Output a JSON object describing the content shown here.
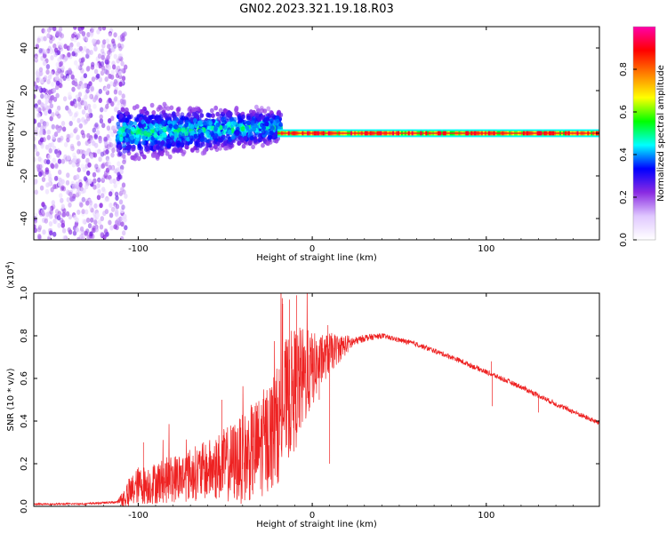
{
  "figure": {
    "title": "GN02.2023.321.19.18.R03"
  },
  "colors": {
    "colormap": [
      "#ffffff",
      "#e0c8ff",
      "#8a2be2",
      "#0000ff",
      "#00ffff",
      "#00ff00",
      "#ffff00",
      "#ff8000",
      "#ff0000",
      "#ff00aa"
    ],
    "snr_line": "#ee2222",
    "axes": "#000000"
  },
  "chart_data": [
    {
      "type": "heatmap",
      "name": "spectrogram",
      "xlabel": "Height of straight line (km)",
      "ylabel": "Frequency (Hz)",
      "xlim": [
        -160,
        165
      ],
      "ylim": [
        -50,
        50
      ],
      "xticks": [
        -100,
        0,
        100
      ],
      "yticks": [
        -40,
        -20,
        0,
        20,
        40
      ],
      "colorbar": {
        "label": "Normalized spectral amplitude",
        "range": [
          0.0,
          1.0
        ],
        "ticks": [
          "0.0",
          "0.2",
          "0.4",
          "0.6",
          "0.8"
        ]
      },
      "regions": [
        {
          "x": [
            -160,
            -107
          ],
          "freq_spread": [
            -50,
            50
          ],
          "amplitude": [
            0.05,
            0.25
          ],
          "description_values": "scattered"
        },
        {
          "x": [
            -112,
            -18
          ],
          "freq_spread_start": [
            -15,
            15
          ],
          "freq_spread_end": [
            -6,
            12
          ],
          "amplitude": [
            0.15,
            0.55
          ]
        },
        {
          "x": [
            -20,
            165
          ],
          "freq_center": 0,
          "freq_halfwidth": 1.5,
          "amplitude": [
            0.55,
            0.95
          ]
        }
      ]
    },
    {
      "type": "line",
      "name": "snr",
      "xlabel": "Height of straight line (km)",
      "ylabel": "SNR (10 * v/v)",
      "multiplier_label": "(x10",
      "multiplier_exp": "4",
      "multiplier_close": ")",
      "xlim": [
        -160,
        165
      ],
      "ylim": [
        0,
        1.0
      ],
      "xticks": [
        -100,
        0,
        100
      ],
      "yticks": [
        "0.0",
        "0.2",
        "0.4",
        "0.6",
        "0.8",
        "1.0"
      ],
      "ytick_values": [
        0.0,
        0.2,
        0.4,
        0.6,
        0.8,
        1.0
      ],
      "envelope": {
        "x": [
          -160,
          -130,
          -112,
          -105,
          -100,
          -95,
          -80,
          -60,
          -40,
          -30,
          -20,
          -15,
          -10,
          -5,
          0,
          5,
          10,
          20,
          30,
          40,
          60,
          80,
          100,
          120,
          140,
          165
        ],
        "y": [
          0.01,
          0.012,
          0.02,
          0.06,
          0.1,
          0.1,
          0.13,
          0.17,
          0.22,
          0.28,
          0.38,
          0.5,
          0.55,
          0.6,
          0.64,
          0.68,
          0.72,
          0.76,
          0.79,
          0.8,
          0.76,
          0.7,
          0.63,
          0.56,
          0.48,
          0.39
        ]
      },
      "noise": {
        "x": [
          -160,
          -112,
          -105,
          -60,
          -20,
          -10,
          5,
          25,
          40,
          165
        ],
        "amp": [
          0.004,
          0.005,
          0.08,
          0.14,
          0.28,
          0.3,
          0.12,
          0.02,
          0.012,
          0.012
        ]
      },
      "spikes": [
        {
          "x": -97,
          "y": 0.3
        },
        {
          "x": -52,
          "y": 0.5
        },
        {
          "x": -17,
          "y": 0.95
        },
        {
          "x": -13,
          "y": 0.97
        },
        {
          "x": -9,
          "y": 0.99
        },
        {
          "x": 4,
          "y": 0.5
        },
        {
          "x": 9,
          "y": 0.85
        },
        {
          "x": 10,
          "y": 0.2
        },
        {
          "x": 103,
          "y": 0.68
        },
        {
          "x": 103.5,
          "y": 0.47
        },
        {
          "x": 130,
          "y": 0.44
        }
      ]
    }
  ]
}
